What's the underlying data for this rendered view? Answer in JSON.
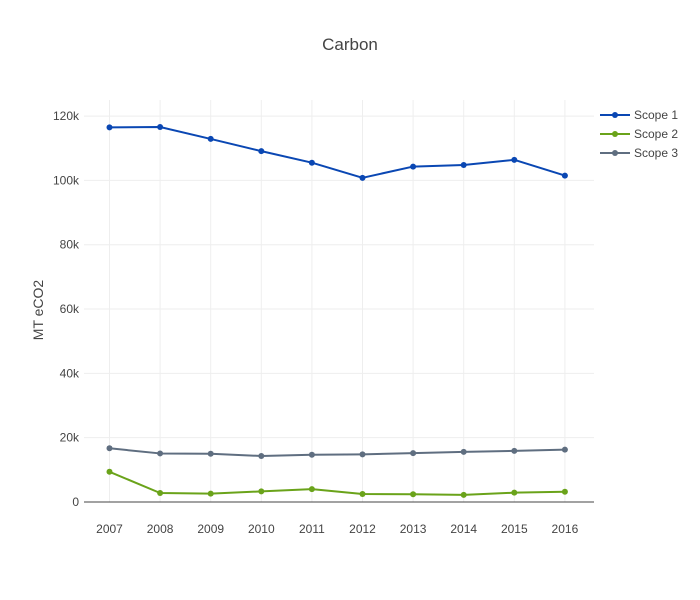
{
  "chart_data": {
    "type": "line",
    "title": "Carbon",
    "xlabel": "",
    "ylabel": "MT eCO2",
    "x": [
      "2007",
      "2008",
      "2009",
      "2010",
      "2011",
      "2012",
      "2013",
      "2014",
      "2015",
      "2016"
    ],
    "ylim": [
      0,
      125000
    ],
    "yticks": [
      0,
      20000,
      40000,
      60000,
      80000,
      100000,
      120000
    ],
    "ytick_labels": [
      "0",
      "20k",
      "40k",
      "60k",
      "80k",
      "100k",
      "120k"
    ],
    "grid": true,
    "legend_position": "top-right",
    "series": [
      {
        "name": "Scope 1",
        "color": "#0a47b3",
        "values": [
          116500,
          116600,
          112900,
          109100,
          105500,
          100800,
          104300,
          104800,
          106400,
          101500
        ]
      },
      {
        "name": "Scope 2",
        "color": "#6aa31a",
        "values": [
          9400,
          2800,
          2600,
          3300,
          4000,
          2500,
          2400,
          2200,
          2900,
          3200
        ]
      },
      {
        "name": "Scope 3",
        "color": "#5f6e80",
        "values": [
          16700,
          15100,
          15000,
          14300,
          14700,
          14800,
          15200,
          15600,
          15900,
          16300
        ]
      }
    ]
  }
}
